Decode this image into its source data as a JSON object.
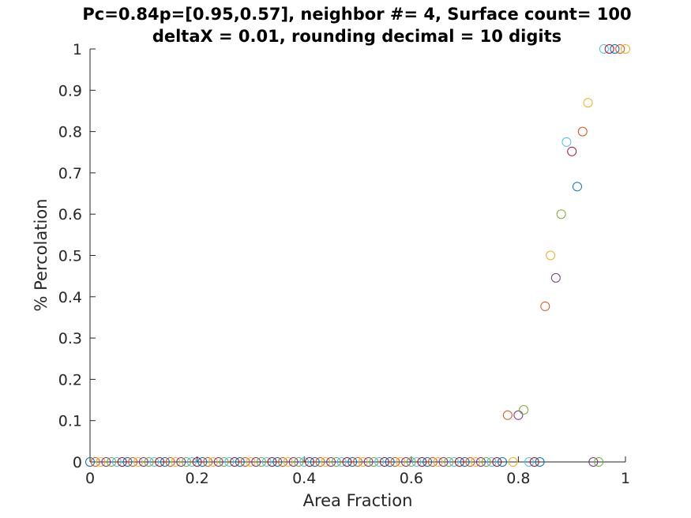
{
  "chart_data": {
    "type": "scatter",
    "title": "Pc=0.84p=[0.95,0.57], neighbor #= 4, Surface count= 100",
    "subtitle": "deltaX = 0.01, rounding decimal = 10 digits",
    "xlabel": "Area Fraction",
    "ylabel": "% Percolation",
    "xlim": [
      0,
      1
    ],
    "ylim": [
      0,
      1
    ],
    "xticks": [
      0,
      0.2,
      0.4,
      0.6,
      0.8,
      1
    ],
    "xtick_labels": [
      "0",
      "0.2",
      "0.4",
      "0.6",
      "0.8",
      "1"
    ],
    "yticks": [
      0,
      0.1,
      0.2,
      0.3,
      0.4,
      0.5,
      0.6,
      0.7,
      0.8,
      0.9,
      1
    ],
    "ytick_labels": [
      "0",
      "0.1",
      "0.2",
      "0.3",
      "0.4",
      "0.5",
      "0.6",
      "0.7",
      "0.8",
      "0.9",
      "1"
    ],
    "grid": false,
    "colors": [
      "#0072BD",
      "#D95319",
      "#EDB120",
      "#7E2F8E",
      "#77AC30",
      "#4DBEEE",
      "#A2142F"
    ],
    "points": {
      "x": [
        0,
        0.01,
        0.02,
        0.03,
        0.04,
        0.05,
        0.06,
        0.07,
        0.08,
        0.09,
        0.1,
        0.11,
        0.12,
        0.13,
        0.14,
        0.15,
        0.16,
        0.17,
        0.18,
        0.19,
        0.2,
        0.21,
        0.22,
        0.23,
        0.24,
        0.25,
        0.26,
        0.27,
        0.28,
        0.29,
        0.3,
        0.31,
        0.32,
        0.33,
        0.34,
        0.35,
        0.36,
        0.37,
        0.38,
        0.39,
        0.4,
        0.41,
        0.42,
        0.43,
        0.44,
        0.45,
        0.46,
        0.47,
        0.48,
        0.49,
        0.5,
        0.51,
        0.52,
        0.53,
        0.54,
        0.55,
        0.56,
        0.57,
        0.58,
        0.59,
        0.6,
        0.61,
        0.62,
        0.63,
        0.64,
        0.65,
        0.66,
        0.67,
        0.68,
        0.69,
        0.7,
        0.71,
        0.72,
        0.73,
        0.74,
        0.75,
        0.76,
        0.77,
        0.78,
        0.79,
        0.8,
        0.81,
        0.82,
        0.83,
        0.84,
        0.85,
        0.86,
        0.87,
        0.88,
        0.89,
        0.9,
        0.91,
        0.92,
        0.93,
        0.94,
        0.95,
        0.96,
        0.97,
        0.98,
        0.99,
        1
      ],
      "y": [
        0,
        0,
        0,
        0,
        0,
        0,
        0,
        0,
        0,
        0,
        0,
        0,
        0,
        0,
        0,
        0,
        0,
        0,
        0,
        0,
        0,
        0,
        0,
        0,
        0,
        0,
        0,
        0,
        0,
        0,
        0,
        0,
        0,
        0,
        0,
        0,
        0,
        0,
        0,
        0,
        0,
        0,
        0,
        0,
        0,
        0,
        0,
        0,
        0,
        0,
        0,
        0,
        0,
        0,
        0,
        0,
        0,
        0,
        0,
        0,
        0,
        0,
        0,
        0,
        0,
        0,
        0,
        0,
        0,
        0,
        0,
        0,
        0,
        0,
        0,
        0,
        0,
        0,
        0.1132,
        0,
        0.1132,
        0.1261,
        0,
        0,
        0,
        0.3768,
        0.5,
        0.4457,
        0.6,
        0.7746,
        0.7518,
        0.6667,
        0.8,
        0.8697,
        0,
        0,
        1,
        1,
        1,
        1,
        1
      ]
    }
  }
}
